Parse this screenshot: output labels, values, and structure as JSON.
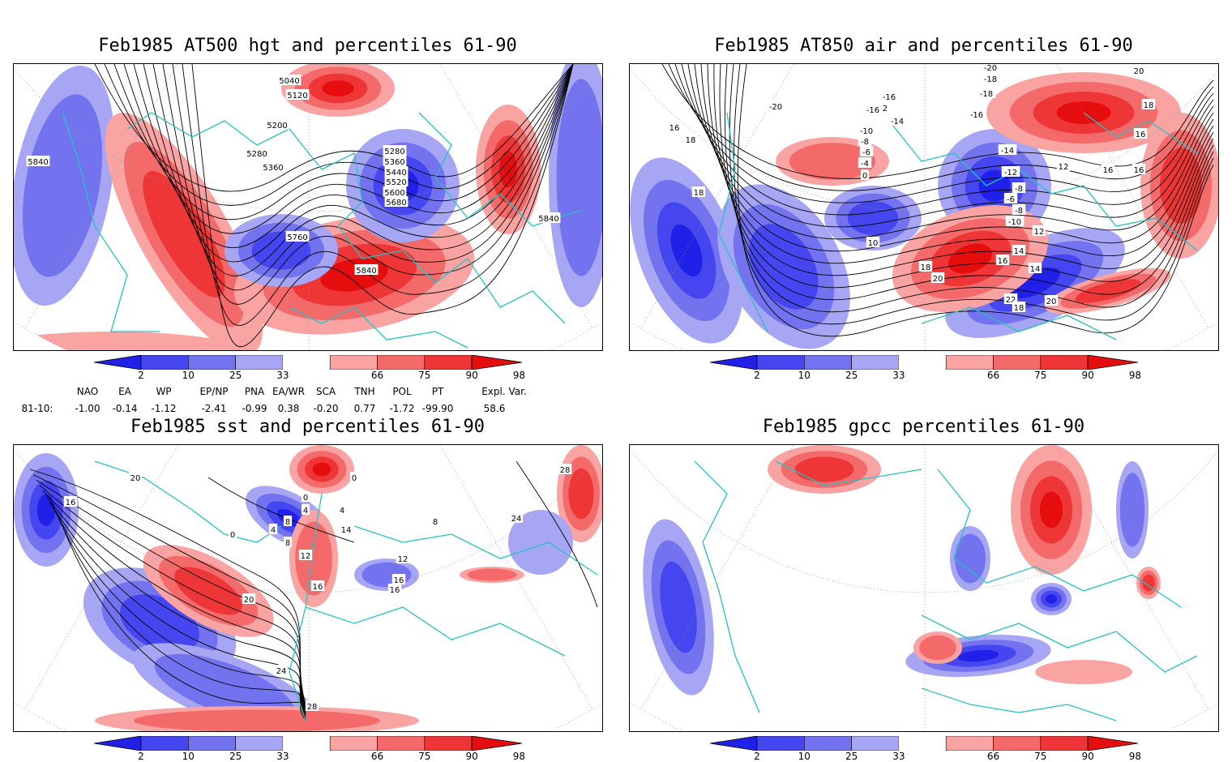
{
  "panels": [
    {
      "id": "z500",
      "title": "Feb1985 AT500 hgt and percentiles 61-90",
      "contour_labels": [
        "5040",
        "5120",
        "5200",
        "5280",
        "5360",
        "5280",
        "5360",
        "5440",
        "5520",
        "5600",
        "5680",
        "5760",
        "5840",
        "5840",
        "5840"
      ]
    },
    {
      "id": "t850",
      "title": "Feb1985 AT850 air and percentiles 61-90",
      "contour_labels": [
        "-20",
        "-18",
        "-16",
        "-12",
        "-14",
        "-10",
        "-8",
        "-6",
        "-4",
        "0",
        "16",
        "18",
        "18",
        "-18",
        "-16",
        "-14",
        "-12",
        "-6",
        "-8",
        "-10",
        "12",
        "14",
        "16",
        "18",
        "20",
        "22",
        "20",
        "18",
        "16",
        "16",
        "12",
        "10",
        "14",
        "-20",
        "-16",
        "20",
        "18",
        "16",
        "-8"
      ]
    },
    {
      "id": "sst",
      "title": "Feb1985 sst and percentiles 61-90",
      "contour_labels": [
        "20",
        "16",
        "8",
        "4",
        "0",
        "0",
        "4",
        "8",
        "12",
        "16",
        "20",
        "24",
        "28",
        "0",
        "4",
        "14",
        "8",
        "12",
        "16",
        "16",
        "24",
        "28"
      ]
    },
    {
      "id": "gpcc",
      "title": "Feb1985 gpcc percentiles 61-90",
      "contour_labels": []
    }
  ],
  "colorbar": {
    "labels": [
      "2",
      "10",
      "25",
      "33",
      "66",
      "75",
      "90",
      "98"
    ],
    "colors": {
      "below2": "#2020e8",
      "b2_10": "#4646f0",
      "b10_25": "#7373f0",
      "b25_33": "#a6a6f5",
      "mid": "#ffffff",
      "a66_75": "#f9a3a3",
      "a75_90": "#f46a6a",
      "a90_98": "#ee3636",
      "above98": "#e50d0d"
    }
  },
  "indices": {
    "headers": [
      "NAO",
      "EA",
      "WP",
      "EP/NP",
      "PNA",
      "EA/WR",
      "SCA",
      "TNH",
      "POL",
      "PT",
      "Expl. Var."
    ],
    "row_label": "81-10:",
    "values": [
      "-1.00",
      "-0.14",
      "-1.12",
      "-2.41",
      "-0.99",
      "0.38",
      "-0.20",
      "0.77",
      "-1.72",
      "-99.90",
      "58.6"
    ]
  },
  "colors": {
    "coast": "#24c2c2",
    "contour": "#000000",
    "grid": "#9a9a9a"
  }
}
